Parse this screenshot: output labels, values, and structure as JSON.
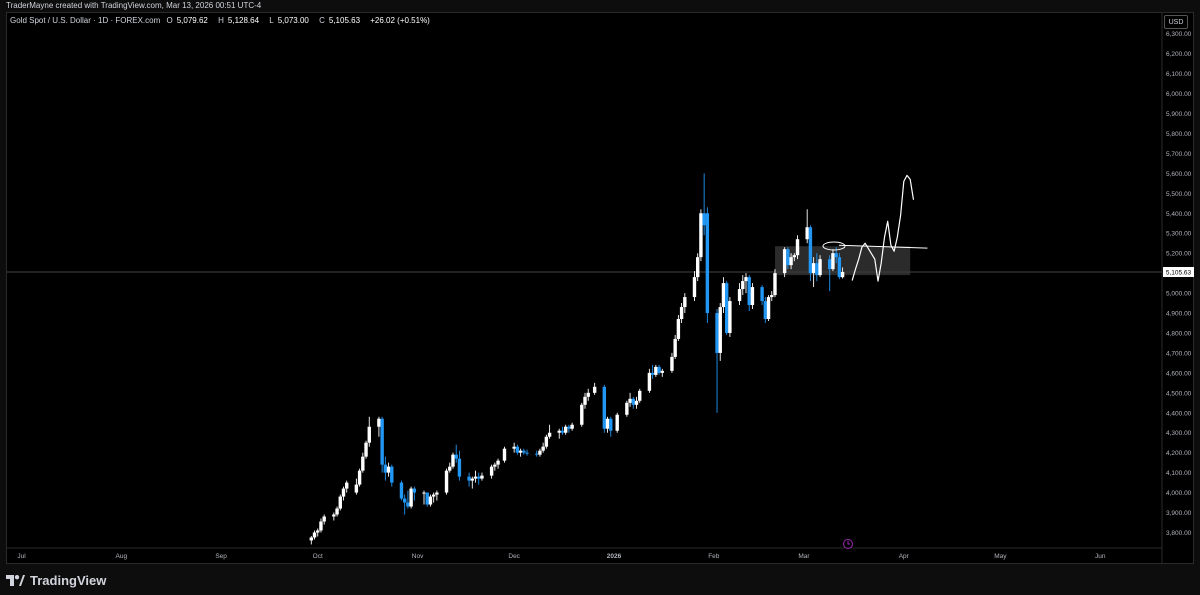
{
  "header": {
    "credit": "TraderMayne created with TradingView.com, Mar 13, 2026 00:51 UTC-4",
    "symbol": "Gold Spot / U.S. Dollar · 1D · FOREX.com",
    "open_label": "O",
    "open": "5,079.62",
    "high_label": "H",
    "high": "5,128.64",
    "low_label": "L",
    "low": "5,073.00",
    "close_label": "C",
    "close": "5,105.63",
    "change": "+26.02 (+0.51%)",
    "currency": "USD"
  },
  "footer": {
    "brand": "TradingView"
  },
  "colors": {
    "up": "#ffffff",
    "down": "#2196f3",
    "background": "#000000",
    "grid": "#ffffff",
    "zone": "#3a3a3a",
    "alert": "#9c27b0"
  },
  "icons": [
    "tradingview-logo-icon",
    "alert-clock-icon"
  ],
  "chart_data": {
    "type": "candlestick",
    "y_axis": {
      "ticks": [
        3800,
        3900,
        4000,
        4100,
        4200,
        4300,
        4400,
        4500,
        4600,
        4700,
        4800,
        4900,
        5000,
        5100,
        5200,
        5300,
        5400,
        5500,
        5600,
        5700,
        5800,
        5900,
        6000,
        6100,
        6200,
        6300
      ],
      "tick_labels": [
        "3,800.00",
        "3,900.00",
        "4,000.00",
        "4,100.00",
        "4,200.00",
        "4,300.00",
        "4,400.00",
        "4,500.00",
        "4,600.00",
        "4,700.00",
        "4,800.00",
        "4,900.00",
        "5,000.00",
        "5,100.00",
        "5,200.00",
        "5,300.00",
        "5,400.00",
        "5,500.00",
        "5,600.00",
        "5,700.00",
        "5,800.00",
        "5,900.00",
        "6,000.00",
        "6,100.00",
        "6,200.00",
        "6,300.00"
      ],
      "position": "right"
    },
    "x_axis": {
      "months": [
        "Jul",
        "Aug",
        "Sep",
        "Oct",
        "Nov",
        "Dec",
        "2026",
        "Feb",
        "Mar",
        "Apr",
        "May",
        "Jun"
      ],
      "month_dates": [
        "2025-07-01",
        "2025-08-01",
        "2025-09-01",
        "2025-10-01",
        "2025-11-01",
        "2025-12-01",
        "2026-01-01",
        "2026-02-01",
        "2026-03-01",
        "2026-04-01",
        "2026-05-01",
        "2026-06-01"
      ]
    },
    "last_price": 5105.63,
    "last_price_label": "5,105.63",
    "candles": [
      {
        "d": "2025-09-29",
        "o": 3760,
        "h": 3782,
        "l": 3740,
        "c": 3775
      },
      {
        "d": "2025-09-30",
        "o": 3775,
        "h": 3810,
        "l": 3765,
        "c": 3800
      },
      {
        "d": "2025-10-01",
        "o": 3800,
        "h": 3820,
        "l": 3780,
        "c": 3810
      },
      {
        "d": "2025-10-02",
        "o": 3810,
        "h": 3870,
        "l": 3800,
        "c": 3855
      },
      {
        "d": "2025-10-03",
        "o": 3855,
        "h": 3890,
        "l": 3840,
        "c": 3880
      },
      {
        "d": "2025-10-06",
        "o": 3880,
        "h": 3900,
        "l": 3860,
        "c": 3890
      },
      {
        "d": "2025-10-07",
        "o": 3890,
        "h": 3930,
        "l": 3880,
        "c": 3920
      },
      {
        "d": "2025-10-08",
        "o": 3920,
        "h": 3990,
        "l": 3910,
        "c": 3980
      },
      {
        "d": "2025-10-09",
        "o": 3980,
        "h": 4030,
        "l": 3960,
        "c": 4020
      },
      {
        "d": "2025-10-10",
        "o": 4020,
        "h": 4060,
        "l": 4000,
        "c": 4050
      },
      {
        "d": "2025-10-13",
        "o": 4000,
        "h": 4070,
        "l": 3990,
        "c": 4040
      },
      {
        "d": "2025-10-14",
        "o": 4040,
        "h": 4120,
        "l": 4030,
        "c": 4110
      },
      {
        "d": "2025-10-15",
        "o": 4110,
        "h": 4200,
        "l": 4100,
        "c": 4180
      },
      {
        "d": "2025-10-16",
        "o": 4180,
        "h": 4260,
        "l": 4170,
        "c": 4250
      },
      {
        "d": "2025-10-17",
        "o": 4250,
        "h": 4380,
        "l": 4230,
        "c": 4330
      },
      {
        "d": "2025-10-20",
        "o": 4330,
        "h": 4380,
        "l": 4280,
        "c": 4370
      },
      {
        "d": "2025-10-21",
        "o": 4370,
        "h": 4380,
        "l": 4100,
        "c": 4140
      },
      {
        "d": "2025-10-22",
        "o": 4140,
        "h": 4180,
        "l": 4060,
        "c": 4100
      },
      {
        "d": "2025-10-23",
        "o": 4100,
        "h": 4150,
        "l": 4080,
        "c": 4130
      },
      {
        "d": "2025-10-24",
        "o": 4130,
        "h": 4140,
        "l": 4030,
        "c": 4050
      },
      {
        "d": "2025-10-27",
        "o": 4050,
        "h": 4060,
        "l": 3960,
        "c": 3970
      },
      {
        "d": "2025-10-28",
        "o": 3970,
        "h": 3990,
        "l": 3890,
        "c": 3950
      },
      {
        "d": "2025-10-29",
        "o": 3950,
        "h": 4010,
        "l": 3920,
        "c": 3930
      },
      {
        "d": "2025-10-30",
        "o": 3930,
        "h": 4030,
        "l": 3920,
        "c": 4020
      },
      {
        "d": "2025-10-31",
        "o": 4020,
        "h": 4030,
        "l": 3960,
        "c": 4000
      },
      {
        "d": "2025-11-03",
        "o": 4000,
        "h": 4010,
        "l": 3940,
        "c": 4000
      },
      {
        "d": "2025-11-04",
        "o": 4000,
        "h": 4000,
        "l": 3930,
        "c": 3940
      },
      {
        "d": "2025-11-05",
        "o": 3940,
        "h": 3990,
        "l": 3930,
        "c": 3980
      },
      {
        "d": "2025-11-06",
        "o": 3980,
        "h": 4000,
        "l": 3950,
        "c": 3990
      },
      {
        "d": "2025-11-07",
        "o": 3990,
        "h": 4010,
        "l": 3960,
        "c": 4000
      },
      {
        "d": "2025-11-10",
        "o": 4000,
        "h": 4120,
        "l": 3990,
        "c": 4110
      },
      {
        "d": "2025-11-11",
        "o": 4110,
        "h": 4150,
        "l": 4100,
        "c": 4130
      },
      {
        "d": "2025-11-12",
        "o": 4130,
        "h": 4200,
        "l": 4120,
        "c": 4190
      },
      {
        "d": "2025-11-13",
        "o": 4190,
        "h": 4240,
        "l": 4150,
        "c": 4170
      },
      {
        "d": "2025-11-14",
        "o": 4170,
        "h": 4210,
        "l": 4060,
        "c": 4080
      },
      {
        "d": "2025-11-17",
        "o": 4080,
        "h": 4100,
        "l": 4030,
        "c": 4060
      },
      {
        "d": "2025-11-18",
        "o": 4060,
        "h": 4080,
        "l": 4020,
        "c": 4070
      },
      {
        "d": "2025-11-19",
        "o": 4070,
        "h": 4110,
        "l": 4050,
        "c": 4080
      },
      {
        "d": "2025-11-20",
        "o": 4080,
        "h": 4100,
        "l": 4040,
        "c": 4070
      },
      {
        "d": "2025-11-21",
        "o": 4070,
        "h": 4100,
        "l": 4060,
        "c": 4085
      },
      {
        "d": "2025-11-24",
        "o": 4085,
        "h": 4140,
        "l": 4070,
        "c": 4130
      },
      {
        "d": "2025-11-25",
        "o": 4130,
        "h": 4150,
        "l": 4110,
        "c": 4140
      },
      {
        "d": "2025-11-26",
        "o": 4140,
        "h": 4170,
        "l": 4120,
        "c": 4160
      },
      {
        "d": "2025-11-28",
        "o": 4160,
        "h": 4230,
        "l": 4150,
        "c": 4220
      },
      {
        "d": "2025-12-01",
        "o": 4220,
        "h": 4250,
        "l": 4200,
        "c": 4230
      },
      {
        "d": "2025-12-02",
        "o": 4230,
        "h": 4240,
        "l": 4190,
        "c": 4200
      },
      {
        "d": "2025-12-03",
        "o": 4200,
        "h": 4220,
        "l": 4180,
        "c": 4210
      },
      {
        "d": "2025-12-04",
        "o": 4210,
        "h": 4220,
        "l": 4190,
        "c": 4200
      },
      {
        "d": "2025-12-05",
        "o": 4200,
        "h": 4215,
        "l": 4185,
        "c": 4195
      },
      {
        "d": "2025-12-08",
        "o": 4195,
        "h": 4210,
        "l": 4180,
        "c": 4190
      },
      {
        "d": "2025-12-09",
        "o": 4190,
        "h": 4220,
        "l": 4180,
        "c": 4210
      },
      {
        "d": "2025-12-10",
        "o": 4210,
        "h": 4250,
        "l": 4200,
        "c": 4230
      },
      {
        "d": "2025-12-11",
        "o": 4230,
        "h": 4290,
        "l": 4220,
        "c": 4280
      },
      {
        "d": "2025-12-12",
        "o": 4280,
        "h": 4340,
        "l": 4270,
        "c": 4300
      },
      {
        "d": "2025-12-15",
        "o": 4300,
        "h": 4320,
        "l": 4270,
        "c": 4310
      },
      {
        "d": "2025-12-16",
        "o": 4310,
        "h": 4330,
        "l": 4290,
        "c": 4300
      },
      {
        "d": "2025-12-17",
        "o": 4300,
        "h": 4340,
        "l": 4290,
        "c": 4330
      },
      {
        "d": "2025-12-18",
        "o": 4330,
        "h": 4340,
        "l": 4300,
        "c": 4320
      },
      {
        "d": "2025-12-19",
        "o": 4320,
        "h": 4350,
        "l": 4310,
        "c": 4340
      },
      {
        "d": "2025-12-22",
        "o": 4340,
        "h": 4450,
        "l": 4330,
        "c": 4440
      },
      {
        "d": "2025-12-23",
        "o": 4440,
        "h": 4500,
        "l": 4420,
        "c": 4480
      },
      {
        "d": "2025-12-24",
        "o": 4480,
        "h": 4520,
        "l": 4460,
        "c": 4500
      },
      {
        "d": "2025-12-26",
        "o": 4500,
        "h": 4550,
        "l": 4490,
        "c": 4530
      },
      {
        "d": "2025-12-29",
        "o": 4530,
        "h": 4540,
        "l": 4300,
        "c": 4320
      },
      {
        "d": "2025-12-30",
        "o": 4320,
        "h": 4380,
        "l": 4300,
        "c": 4370
      },
      {
        "d": "2025-12-31",
        "o": 4370,
        "h": 4380,
        "l": 4280,
        "c": 4310
      },
      {
        "d": "2026-01-02",
        "o": 4310,
        "h": 4400,
        "l": 4300,
        "c": 4390
      },
      {
        "d": "2026-01-05",
        "o": 4390,
        "h": 4460,
        "l": 4380,
        "c": 4450
      },
      {
        "d": "2026-01-06",
        "o": 4450,
        "h": 4500,
        "l": 4430,
        "c": 4470
      },
      {
        "d": "2026-01-07",
        "o": 4470,
        "h": 4480,
        "l": 4420,
        "c": 4440
      },
      {
        "d": "2026-01-08",
        "o": 4440,
        "h": 4480,
        "l": 4420,
        "c": 4460
      },
      {
        "d": "2026-01-09",
        "o": 4460,
        "h": 4520,
        "l": 4450,
        "c": 4510
      },
      {
        "d": "2026-01-12",
        "o": 4510,
        "h": 4620,
        "l": 4500,
        "c": 4600
      },
      {
        "d": "2026-01-13",
        "o": 4600,
        "h": 4640,
        "l": 4570,
        "c": 4590
      },
      {
        "d": "2026-01-14",
        "o": 4590,
        "h": 4640,
        "l": 4580,
        "c": 4630
      },
      {
        "d": "2026-01-15",
        "o": 4630,
        "h": 4640,
        "l": 4590,
        "c": 4600
      },
      {
        "d": "2026-01-16",
        "o": 4600,
        "h": 4620,
        "l": 4580,
        "c": 4610
      },
      {
        "d": "2026-01-19",
        "o": 4610,
        "h": 4700,
        "l": 4600,
        "c": 4680
      },
      {
        "d": "2026-01-20",
        "o": 4680,
        "h": 4790,
        "l": 4670,
        "c": 4770
      },
      {
        "d": "2026-01-21",
        "o": 4770,
        "h": 4890,
        "l": 4760,
        "c": 4870
      },
      {
        "d": "2026-01-22",
        "o": 4870,
        "h": 4950,
        "l": 4850,
        "c": 4930
      },
      {
        "d": "2026-01-23",
        "o": 4930,
        "h": 5000,
        "l": 4900,
        "c": 4980
      },
      {
        "d": "2026-01-26",
        "o": 4980,
        "h": 5110,
        "l": 4960,
        "c": 5080
      },
      {
        "d": "2026-01-27",
        "o": 5080,
        "h": 5200,
        "l": 5060,
        "c": 5180
      },
      {
        "d": "2026-01-28",
        "o": 5180,
        "h": 5420,
        "l": 5160,
        "c": 5400
      },
      {
        "d": "2026-01-29",
        "o": 5400,
        "h": 5600,
        "l": 5290,
        "c": 5340
      },
      {
        "d": "2026-01-30",
        "o": 5400,
        "h": 5430,
        "l": 4850,
        "c": 4900
      },
      {
        "d": "2026-02-02",
        "o": 4900,
        "h": 4920,
        "l": 4400,
        "c": 4700
      },
      {
        "d": "2026-02-03",
        "o": 4700,
        "h": 4950,
        "l": 4660,
        "c": 4930
      },
      {
        "d": "2026-02-04",
        "o": 4930,
        "h": 5080,
        "l": 4900,
        "c": 5050
      },
      {
        "d": "2026-02-05",
        "o": 5050,
        "h": 5060,
        "l": 4790,
        "c": 4800
      },
      {
        "d": "2026-02-06",
        "o": 4800,
        "h": 4980,
        "l": 4780,
        "c": 4960
      },
      {
        "d": "2026-02-09",
        "o": 4960,
        "h": 5050,
        "l": 4940,
        "c": 5020
      },
      {
        "d": "2026-02-10",
        "o": 5020,
        "h": 5090,
        "l": 4990,
        "c": 5060
      },
      {
        "d": "2026-02-11",
        "o": 5060,
        "h": 5100,
        "l": 5000,
        "c": 5080
      },
      {
        "d": "2026-02-12",
        "o": 5080,
        "h": 5090,
        "l": 4910,
        "c": 4940
      },
      {
        "d": "2026-02-13",
        "o": 4940,
        "h": 5050,
        "l": 4920,
        "c": 5030
      },
      {
        "d": "2026-02-16",
        "o": 5030,
        "h": 5040,
        "l": 4940,
        "c": 4960
      },
      {
        "d": "2026-02-17",
        "o": 4960,
        "h": 4980,
        "l": 4850,
        "c": 4870
      },
      {
        "d": "2026-02-18",
        "o": 4870,
        "h": 4990,
        "l": 4860,
        "c": 4980
      },
      {
        "d": "2026-02-19",
        "o": 4980,
        "h": 5010,
        "l": 4960,
        "c": 4990
      },
      {
        "d": "2026-02-20",
        "o": 4990,
        "h": 5120,
        "l": 4980,
        "c": 5100
      },
      {
        "d": "2026-02-23",
        "o": 5100,
        "h": 5230,
        "l": 5080,
        "c": 5220
      },
      {
        "d": "2026-02-24",
        "o": 5220,
        "h": 5230,
        "l": 5120,
        "c": 5140
      },
      {
        "d": "2026-02-25",
        "o": 5140,
        "h": 5200,
        "l": 5120,
        "c": 5180
      },
      {
        "d": "2026-02-26",
        "o": 5180,
        "h": 5200,
        "l": 5160,
        "c": 5190
      },
      {
        "d": "2026-02-27",
        "o": 5190,
        "h": 5290,
        "l": 5170,
        "c": 5270
      },
      {
        "d": "2026-03-02",
        "o": 5270,
        "h": 5420,
        "l": 5250,
        "c": 5330
      },
      {
        "d": "2026-03-03",
        "o": 5330,
        "h": 5340,
        "l": 5060,
        "c": 5100
      },
      {
        "d": "2026-03-04",
        "o": 5100,
        "h": 5180,
        "l": 5030,
        "c": 5150
      },
      {
        "d": "2026-03-05",
        "o": 5150,
        "h": 5200,
        "l": 5060,
        "c": 5090
      },
      {
        "d": "2026-03-06",
        "o": 5090,
        "h": 5190,
        "l": 5080,
        "c": 5170
      },
      {
        "d": "2026-03-09",
        "o": 5170,
        "h": 5190,
        "l": 5010,
        "c": 5120
      },
      {
        "d": "2026-03-10",
        "o": 5120,
        "h": 5220,
        "l": 5110,
        "c": 5200
      },
      {
        "d": "2026-03-11",
        "o": 5200,
        "h": 5230,
        "l": 5150,
        "c": 5180
      },
      {
        "d": "2026-03-12",
        "o": 5180,
        "h": 5200,
        "l": 5070,
        "c": 5080
      },
      {
        "d": "2026-03-13",
        "o": 5079.62,
        "h": 5128.64,
        "l": 5073.0,
        "c": 5105.63
      }
    ],
    "zone": {
      "from": "2026-02-20",
      "to": "2026-04-03",
      "top": 5235,
      "bottom": 5090
    },
    "resistance_line": {
      "from": "2026-03-10",
      "to": "2026-04-04",
      "value": 5230
    },
    "projection_path": [
      {
        "d": "2026-03-16",
        "v": 5065
      },
      {
        "d": "2026-03-17",
        "v": 5120
      },
      {
        "d": "2026-03-18",
        "v": 5170
      },
      {
        "d": "2026-03-19",
        "v": 5230
      },
      {
        "d": "2026-03-20",
        "v": 5250
      },
      {
        "d": "2026-03-23",
        "v": 5170
      },
      {
        "d": "2026-03-24",
        "v": 5060
      },
      {
        "d": "2026-03-25",
        "v": 5150
      },
      {
        "d": "2026-03-26",
        "v": 5280
      },
      {
        "d": "2026-03-27",
        "v": 5360
      },
      {
        "d": "2026-03-28",
        "v": 5240
      },
      {
        "d": "2026-03-29",
        "v": 5210
      },
      {
        "d": "2026-03-30",
        "v": 5280
      },
      {
        "d": "2026-03-31",
        "v": 5390
      },
      {
        "d": "2026-04-01",
        "v": 5560
      },
      {
        "d": "2026-04-02",
        "v": 5590
      },
      {
        "d": "2026-04-03",
        "v": 5570
      },
      {
        "d": "2026-04-04",
        "v": 5470
      }
    ]
  }
}
